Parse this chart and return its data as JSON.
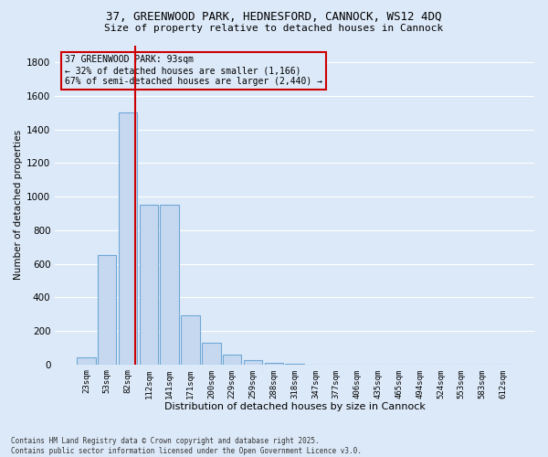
{
  "title_line1": "37, GREENWOOD PARK, HEDNESFORD, CANNOCK, WS12 4DQ",
  "title_line2": "Size of property relative to detached houses in Cannock",
  "xlabel": "Distribution of detached houses by size in Cannock",
  "ylabel": "Number of detached properties",
  "categories": [
    "23sqm",
    "53sqm",
    "82sqm",
    "112sqm",
    "141sqm",
    "171sqm",
    "200sqm",
    "229sqm",
    "259sqm",
    "288sqm",
    "318sqm",
    "347sqm",
    "377sqm",
    "406sqm",
    "435sqm",
    "465sqm",
    "494sqm",
    "524sqm",
    "553sqm",
    "583sqm",
    "612sqm"
  ],
  "values": [
    40,
    650,
    1500,
    950,
    950,
    295,
    130,
    60,
    25,
    10,
    5,
    0,
    0,
    0,
    0,
    0,
    0,
    0,
    0,
    0,
    0
  ],
  "bar_color": "#c5d8f0",
  "bar_edge_color": "#6fa8d6",
  "ylim": [
    0,
    1900
  ],
  "yticks": [
    0,
    200,
    400,
    600,
    800,
    1000,
    1200,
    1400,
    1600,
    1800
  ],
  "vline_color": "#cc0000",
  "annotation_box_text": "37 GREENWOOD PARK: 93sqm\n← 32% of detached houses are smaller (1,166)\n67% of semi-detached houses are larger (2,440) →",
  "annotation_box_color": "#cc0000",
  "background_color": "#dce9f8",
  "grid_color": "#ffffff",
  "footnote": "Contains HM Land Registry data © Crown copyright and database right 2025.\nContains public sector information licensed under the Open Government Licence v3.0."
}
